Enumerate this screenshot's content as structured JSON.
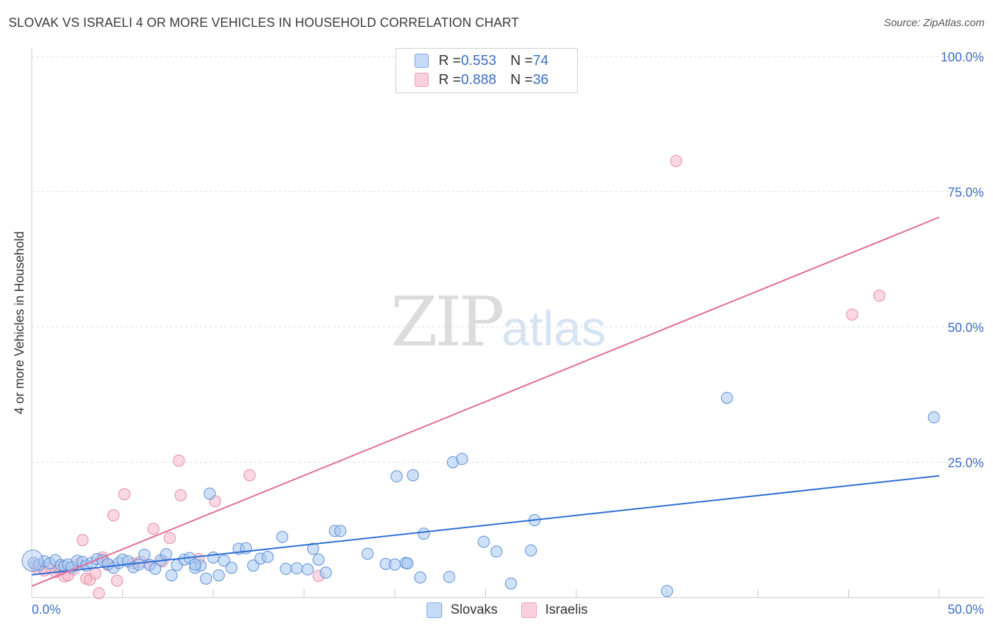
{
  "header": {
    "title": "SLOVAK VS ISRAELI 4 OR MORE VEHICLES IN HOUSEHOLD CORRELATION CHART",
    "source": "Source: ZipAtlas.com"
  },
  "watermark": {
    "zip": "ZIP",
    "atlas": "atlas"
  },
  "legend": {
    "rows": [
      {
        "r_label": "R = ",
        "r_value": "0.553",
        "n_label": "N = ",
        "n_value": "74",
        "color": "#a8c8f0"
      },
      {
        "r_label": "R = ",
        "r_value": "0.888",
        "n_label": "N = ",
        "n_value": "36",
        "color": "#f6b8cb"
      }
    ]
  },
  "bottom_legend": {
    "slovaks": "Slovaks",
    "israelis": "Israelis"
  },
  "colors": {
    "slovak_fill": "#a8c8f0",
    "slovak_stroke": "#5b8fd6",
    "slovak_line": "#2a6dd4",
    "israeli_fill": "#f6b8cb",
    "israeli_stroke": "#e58aa8",
    "israeli_line": "#e26b95",
    "tick_text": "#3b6fc4"
  },
  "chart_data": {
    "type": "scatter",
    "title": "SLOVAK VS ISRAELI 4 OR MORE VEHICLES IN HOUSEHOLD CORRELATION CHART",
    "xlabel": "",
    "ylabel": "4 or more Vehicles in Household",
    "xlim": [
      0,
      50
    ],
    "ylim": [
      0,
      100
    ],
    "x_tick_labels": [
      "0.0%",
      "50.0%"
    ],
    "y_tick_labels": [
      "100.0%",
      "75.0%",
      "50.0%",
      "25.0%"
    ],
    "y_ticks": [
      100,
      75,
      50,
      25
    ],
    "grid": true,
    "legend_position": "top-center",
    "series": [
      {
        "name": "Slovaks",
        "r": 0.553,
        "n": 74,
        "trend": {
          "x": [
            0,
            50
          ],
          "y": [
            4.2,
            22.5
          ]
        },
        "points": [
          [
            0.1,
            6.4
          ],
          [
            0.4,
            6.0
          ],
          [
            0.7,
            6.7
          ],
          [
            1.0,
            6.3
          ],
          [
            1.3,
            6.9
          ],
          [
            1.6,
            6.0
          ],
          [
            1.8,
            5.8
          ],
          [
            2.0,
            6.1
          ],
          [
            2.2,
            5.6
          ],
          [
            2.5,
            6.8
          ],
          [
            2.8,
            6.6
          ],
          [
            3.0,
            5.9
          ],
          [
            3.3,
            6.4
          ],
          [
            3.6,
            7.1
          ],
          [
            3.9,
            6.9
          ],
          [
            4.2,
            6.2
          ],
          [
            4.5,
            5.5
          ],
          [
            4.8,
            6.4
          ],
          [
            5.0,
            7.0
          ],
          [
            5.3,
            6.7
          ],
          [
            5.6,
            5.6
          ],
          [
            5.9,
            6.1
          ],
          [
            6.2,
            7.9
          ],
          [
            6.5,
            6.0
          ],
          [
            6.8,
            5.3
          ],
          [
            7.1,
            6.9
          ],
          [
            7.4,
            8.0
          ],
          [
            7.7,
            4.1
          ],
          [
            8.0,
            6.0
          ],
          [
            8.4,
            7.0
          ],
          [
            8.7,
            7.3
          ],
          [
            9.0,
            5.5
          ],
          [
            9.3,
            5.9
          ],
          [
            9.6,
            3.5
          ],
          [
            10.0,
            7.4
          ],
          [
            10.3,
            4.1
          ],
          [
            10.6,
            6.8
          ],
          [
            11.0,
            5.5
          ],
          [
            11.4,
            9.0
          ],
          [
            11.8,
            9.1
          ],
          [
            12.2,
            5.9
          ],
          [
            12.6,
            7.2
          ],
          [
            13.0,
            7.5
          ],
          [
            13.8,
            11.2
          ],
          [
            14.0,
            5.3
          ],
          [
            14.6,
            5.4
          ],
          [
            15.2,
            5.2
          ],
          [
            15.5,
            9.0
          ],
          [
            15.8,
            7.0
          ],
          [
            16.2,
            4.6
          ],
          [
            16.7,
            12.3
          ],
          [
            17.0,
            12.3
          ],
          [
            9.8,
            19.2
          ],
          [
            18.5,
            8.1
          ],
          [
            19.5,
            6.2
          ],
          [
            20.0,
            6.1
          ],
          [
            20.1,
            22.4
          ],
          [
            20.6,
            6.4
          ],
          [
            20.7,
            6.3
          ],
          [
            21.0,
            22.6
          ],
          [
            21.4,
            3.7
          ],
          [
            21.6,
            11.8
          ],
          [
            23.0,
            3.8
          ],
          [
            23.2,
            25.0
          ],
          [
            23.7,
            25.6
          ],
          [
            24.9,
            10.3
          ],
          [
            25.6,
            8.5
          ],
          [
            26.4,
            2.6
          ],
          [
            27.5,
            8.7
          ],
          [
            27.7,
            14.3
          ],
          [
            35.0,
            1.2
          ],
          [
            38.3,
            36.9
          ],
          [
            49.7,
            33.3
          ],
          [
            9.0,
            6.1
          ]
        ]
      },
      {
        "name": "Israelis",
        "r": 0.888,
        "n": 36,
        "trend": {
          "x": [
            0,
            50
          ],
          "y": [
            2.1,
            70.3
          ]
        },
        "points": [
          [
            0.3,
            5.4
          ],
          [
            0.7,
            5.0
          ],
          [
            1.0,
            5.6
          ],
          [
            1.3,
            4.7
          ],
          [
            1.6,
            5.1
          ],
          [
            1.8,
            3.9
          ],
          [
            2.0,
            4.1
          ],
          [
            2.3,
            5.2
          ],
          [
            2.6,
            6.2
          ],
          [
            2.8,
            10.6
          ],
          [
            3.0,
            3.5
          ],
          [
            3.2,
            3.3
          ],
          [
            3.5,
            4.4
          ],
          [
            3.7,
            0.8
          ],
          [
            3.9,
            7.4
          ],
          [
            4.2,
            6.0
          ],
          [
            4.5,
            15.2
          ],
          [
            4.7,
            3.1
          ],
          [
            5.1,
            19.1
          ],
          [
            5.6,
            6.3
          ],
          [
            6.0,
            6.6
          ],
          [
            6.5,
            6.0
          ],
          [
            6.7,
            12.7
          ],
          [
            7.2,
            6.7
          ],
          [
            7.6,
            11.0
          ],
          [
            8.1,
            25.3
          ],
          [
            8.2,
            18.9
          ],
          [
            9.2,
            7.1
          ],
          [
            10.1,
            17.8
          ],
          [
            12.0,
            22.6
          ],
          [
            15.8,
            4.0
          ],
          [
            35.5,
            80.7
          ],
          [
            45.2,
            52.3
          ],
          [
            46.7,
            55.8
          ],
          [
            0.2,
            6.0
          ],
          [
            1.5,
            5.6
          ]
        ]
      }
    ]
  }
}
